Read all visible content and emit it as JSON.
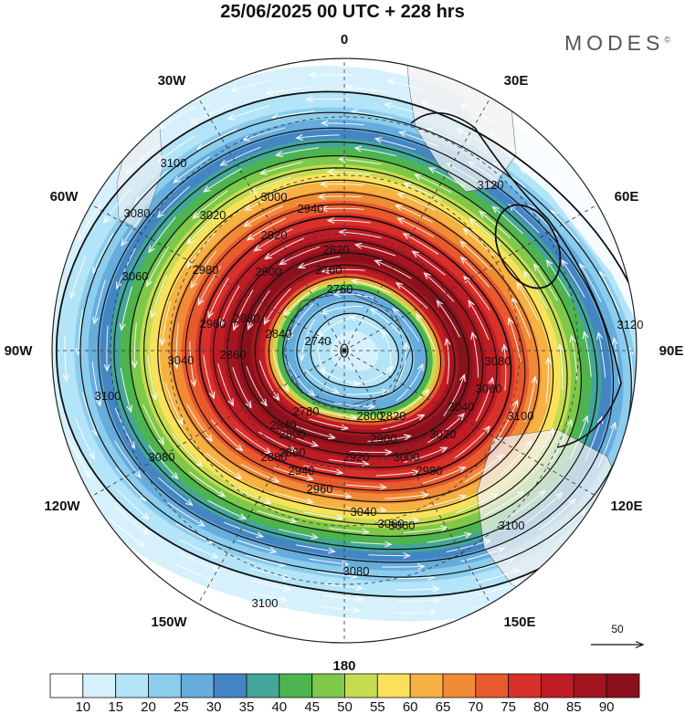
{
  "title": "25/06/2025  00 UTC  + 228 hrs",
  "logo": "MODES",
  "logo_mark": "©",
  "longitude_labels": [
    "0",
    "30E",
    "60E",
    "90E",
    "120E",
    "150E",
    "180",
    "150W",
    "120W",
    "90W",
    "60W",
    "30W"
  ],
  "contour_labels": [
    "3100",
    "3080",
    "3060",
    "3040",
    "3020",
    "3000",
    "2980",
    "2960",
    "2940",
    "2920",
    "2900",
    "2880",
    "2860",
    "2840",
    "2820",
    "2800",
    "2780",
    "2760",
    "2740",
    "3120",
    "3100",
    "3120",
    "3100",
    "3080",
    "3060",
    "3040",
    "3020",
    "3000",
    "2980",
    "2960",
    "2940",
    "2920",
    "2900",
    "2880",
    "2860",
    "2840",
    "2820",
    "2800",
    "2760",
    "3100",
    "3080",
    "3060",
    "3040",
    "3060",
    "3080",
    "3100"
  ],
  "reference_vector_label": "50",
  "colorbar": {
    "labels": [
      "10",
      "15",
      "20",
      "25",
      "30",
      "35",
      "40",
      "45",
      "50",
      "55",
      "60",
      "65",
      "70",
      "75",
      "80",
      "85",
      "90"
    ],
    "colors": [
      "#ffffff",
      "#d6f1fb",
      "#b4e4f8",
      "#8ccdee",
      "#66acdd",
      "#4486c3",
      "#44a69a",
      "#4db44f",
      "#7ec84a",
      "#c4dc52",
      "#fbe15b",
      "#f7b142",
      "#f18a35",
      "#e85a2e",
      "#d8302a",
      "#c01c25",
      "#a51520",
      "#8a111b"
    ]
  }
}
